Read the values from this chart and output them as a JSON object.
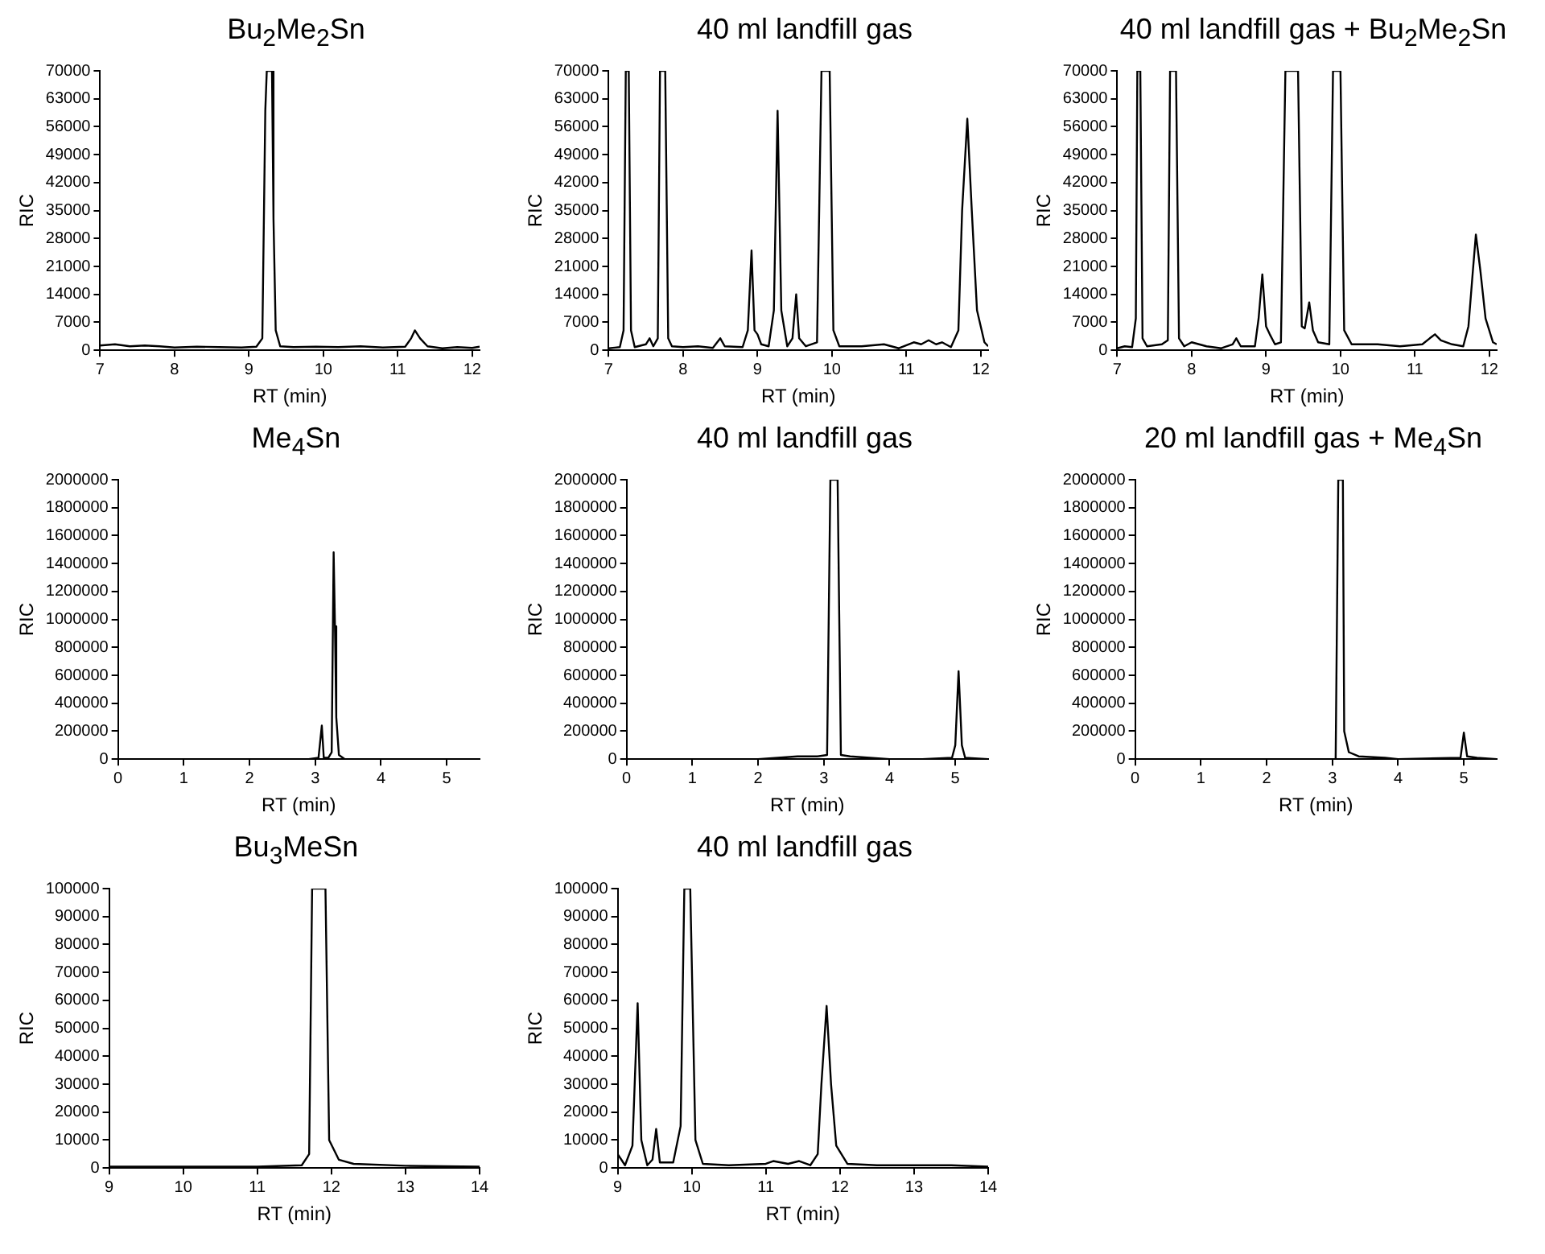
{
  "chart_data": [
    {
      "type": "line",
      "title": "Bu$_{2}$Me$_{2}$Sn",
      "xlabel": "RT (min)",
      "ylabel": "RIC",
      "color": "#000000",
      "marker": "none",
      "line_style": "solid",
      "grid": false,
      "xlim": [
        7,
        12.1
      ],
      "xticks": [
        7,
        8,
        9,
        10,
        11,
        12
      ],
      "ylim": [
        0,
        70000
      ],
      "yticks": [
        0,
        7000,
        14000,
        21000,
        28000,
        35000,
        42000,
        49000,
        56000,
        63000,
        70000
      ],
      "x": [
        7,
        7.2,
        7.4,
        7.6,
        7.8,
        8.0,
        8.3,
        8.6,
        8.9,
        9.1,
        9.18,
        9.22,
        9.24,
        9.31,
        9.33,
        9.36,
        9.42,
        9.6,
        9.9,
        10.2,
        10.5,
        10.8,
        11.1,
        11.18,
        11.23,
        11.3,
        11.4,
        11.6,
        11.8,
        12.0,
        12.1
      ],
      "values": [
        1200,
        1500,
        1000,
        1200,
        1000,
        700,
        900,
        800,
        700,
        900,
        3000,
        60000,
        70000,
        70000,
        33000,
        5000,
        1000,
        800,
        900,
        800,
        1000,
        700,
        900,
        3000,
        5000,
        3000,
        1000,
        500,
        800,
        600,
        900
      ]
    },
    {
      "type": "line",
      "title": "40 ml landfill gas",
      "xlabel": "RT (min)",
      "ylabel": "RIC",
      "color": "#000000",
      "marker": "none",
      "line_style": "solid",
      "grid": false,
      "xlim": [
        7,
        12.1
      ],
      "xticks": [
        7,
        8,
        9,
        10,
        11,
        12
      ],
      "ylim": [
        0,
        70000
      ],
      "yticks": [
        0,
        7000,
        14000,
        21000,
        28000,
        35000,
        42000,
        49000,
        56000,
        63000,
        70000
      ],
      "x": [
        7,
        7.15,
        7.2,
        7.23,
        7.27,
        7.3,
        7.35,
        7.5,
        7.55,
        7.6,
        7.66,
        7.69,
        7.76,
        7.8,
        7.85,
        8.0,
        8.2,
        8.4,
        8.5,
        8.56,
        8.8,
        8.87,
        8.92,
        8.96,
        9.0,
        9.05,
        9.15,
        9.22,
        9.27,
        9.32,
        9.4,
        9.47,
        9.52,
        9.56,
        9.65,
        9.8,
        9.86,
        9.97,
        10.02,
        10.1,
        10.4,
        10.7,
        10.9,
        11.1,
        11.2,
        11.3,
        11.4,
        11.48,
        11.6,
        11.7,
        11.75,
        11.82,
        11.88,
        11.95,
        12.05,
        12.1
      ],
      "values": [
        500,
        800,
        5000,
        70000,
        70000,
        5000,
        800,
        1500,
        3000,
        1000,
        3000,
        70000,
        70000,
        3000,
        1000,
        800,
        1000,
        600,
        3000,
        1000,
        800,
        5000,
        25000,
        5000,
        4000,
        1500,
        1000,
        10000,
        60000,
        10000,
        1000,
        3000,
        14000,
        3000,
        1000,
        2000,
        70000,
        70000,
        5000,
        1000,
        1000,
        1500,
        500,
        2000,
        1500,
        2500,
        1500,
        2000,
        800,
        5000,
        35000,
        58000,
        35000,
        10000,
        2000,
        1000
      ]
    },
    {
      "type": "line",
      "title": "40 ml landfill gas + Bu$_{2}$Me$_{2}$Sn",
      "xlabel": "RT (min)",
      "ylabel": "RIC",
      "color": "#000000",
      "marker": "none",
      "line_style": "solid",
      "grid": false,
      "xlim": [
        7,
        12.1
      ],
      "xticks": [
        7,
        8,
        9,
        10,
        11,
        12
      ],
      "ylim": [
        0,
        70000
      ],
      "yticks": [
        0,
        7000,
        14000,
        21000,
        28000,
        35000,
        42000,
        49000,
        56000,
        63000,
        70000
      ],
      "x": [
        7,
        7.1,
        7.2,
        7.25,
        7.27,
        7.31,
        7.34,
        7.4,
        7.6,
        7.68,
        7.71,
        7.79,
        7.83,
        7.9,
        8.0,
        8.2,
        8.4,
        8.55,
        8.6,
        8.66,
        8.85,
        8.9,
        8.95,
        9.0,
        9.05,
        9.12,
        9.2,
        9.26,
        9.43,
        9.48,
        9.52,
        9.58,
        9.63,
        9.7,
        9.85,
        9.9,
        10.0,
        10.05,
        10.15,
        10.5,
        10.8,
        11.1,
        11.2,
        11.27,
        11.35,
        11.5,
        11.65,
        11.72,
        11.78,
        11.82,
        11.88,
        11.95,
        12.05,
        12.1
      ],
      "values": [
        500,
        1000,
        800,
        8000,
        70000,
        70000,
        3000,
        1000,
        1500,
        2500,
        70000,
        70000,
        3000,
        1000,
        2000,
        1000,
        500,
        1500,
        3000,
        1000,
        1000,
        8000,
        19000,
        6000,
        4000,
        1500,
        2000,
        70000,
        70000,
        6000,
        5500,
        12000,
        5000,
        2000,
        1500,
        70000,
        70000,
        5000,
        1500,
        1500,
        1000,
        1500,
        3000,
        4000,
        2500,
        1500,
        1000,
        6000,
        20000,
        29000,
        20000,
        8000,
        2000,
        1500
      ]
    },
    {
      "type": "line",
      "title": "Me$_{4}$Sn",
      "xlabel": "RT (min)",
      "ylabel": "RIC",
      "color": "#000000",
      "marker": "none",
      "line_style": "solid",
      "grid": false,
      "xlim": [
        0,
        5.5
      ],
      "xticks": [
        0,
        1,
        2,
        3,
        4,
        5
      ],
      "ylim": [
        0,
        2000000
      ],
      "yticks": [
        0,
        200000,
        400000,
        600000,
        800000,
        1000000,
        1200000,
        1400000,
        1600000,
        1800000,
        2000000
      ],
      "x": [
        0,
        1,
        2,
        2.9,
        3.05,
        3.1,
        3.13,
        3.2,
        3.25,
        3.28,
        3.3,
        3.32,
        3.36,
        3.45,
        4,
        5.5
      ],
      "values": [
        0,
        0,
        0,
        0,
        10000,
        240000,
        10000,
        10000,
        50000,
        1480000,
        950000,
        300000,
        30000,
        0,
        0,
        0
      ]
    },
    {
      "type": "line",
      "title": "40 ml landfill gas",
      "xlabel": "RT (min)",
      "ylabel": "RIC",
      "color": "#000000",
      "marker": "none",
      "line_style": "solid",
      "grid": false,
      "xlim": [
        0,
        5.5
      ],
      "xticks": [
        0,
        1,
        2,
        3,
        4,
        5
      ],
      "ylim": [
        0,
        2000000
      ],
      "yticks": [
        0,
        200000,
        400000,
        600000,
        800000,
        1000000,
        1200000,
        1400000,
        1600000,
        1800000,
        2000000
      ],
      "x": [
        0,
        1,
        2,
        2.3,
        2.6,
        2.9,
        3.05,
        3.1,
        3.21,
        3.26,
        3.4,
        3.7,
        4,
        4.5,
        4.95,
        5.0,
        5.05,
        5.1,
        5.15,
        5.5
      ],
      "values": [
        0,
        0,
        0,
        10000,
        20000,
        20000,
        30000,
        2000000,
        2000000,
        30000,
        20000,
        10000,
        0,
        0,
        10000,
        100000,
        630000,
        100000,
        10000,
        0
      ]
    },
    {
      "type": "line",
      "title": "20 ml landfill gas + Me$_{4}$Sn",
      "xlabel": "RT (min)",
      "ylabel": "RIC",
      "color": "#000000",
      "marker": "none",
      "line_style": "solid",
      "grid": false,
      "xlim": [
        0,
        5.5
      ],
      "xticks": [
        0,
        1,
        2,
        3,
        4,
        5
      ],
      "ylim": [
        0,
        2000000
      ],
      "yticks": [
        0,
        200000,
        400000,
        600000,
        800000,
        1000000,
        1200000,
        1400000,
        1600000,
        1800000,
        2000000
      ],
      "x": [
        0,
        1,
        2,
        3.05,
        3.09,
        3.16,
        3.18,
        3.25,
        3.4,
        3.8,
        4.0,
        4.95,
        5.0,
        5.05,
        5.2,
        5.5
      ],
      "values": [
        0,
        0,
        0,
        0,
        2000000,
        2000000,
        200000,
        50000,
        20000,
        10000,
        0,
        10000,
        190000,
        20000,
        10000,
        0
      ]
    },
    {
      "type": "line",
      "title": "Bu$_{3}$MeSn",
      "xlabel": "RT (min)",
      "ylabel": "RIC",
      "color": "#000000",
      "marker": "none",
      "line_style": "solid",
      "grid": false,
      "xlim": [
        9,
        14
      ],
      "xticks": [
        9,
        10,
        11,
        12,
        13,
        14
      ],
      "ylim": [
        0,
        100000
      ],
      "yticks": [
        0,
        10000,
        20000,
        30000,
        40000,
        50000,
        60000,
        70000,
        80000,
        90000,
        100000
      ],
      "x": [
        9,
        10,
        11,
        11.6,
        11.7,
        11.74,
        11.92,
        11.97,
        12.1,
        12.3,
        13,
        14
      ],
      "values": [
        500,
        500,
        500,
        1000,
        5000,
        100000,
        100000,
        10000,
        3000,
        1500,
        800,
        500
      ]
    },
    {
      "type": "line",
      "title": "40 ml landfill gas",
      "xlabel": "RT (min)",
      "ylabel": "RIC",
      "color": "#000000",
      "marker": "none",
      "line_style": "solid",
      "grid": false,
      "xlim": [
        9,
        14
      ],
      "xticks": [
        9,
        10,
        11,
        12,
        13,
        14
      ],
      "ylim": [
        0,
        100000
      ],
      "yticks": [
        0,
        10000,
        20000,
        30000,
        40000,
        50000,
        60000,
        70000,
        80000,
        90000,
        100000
      ],
      "x": [
        9,
        9.05,
        9.1,
        9.2,
        9.27,
        9.32,
        9.4,
        9.47,
        9.52,
        9.57,
        9.75,
        9.85,
        9.9,
        9.98,
        10.05,
        10.15,
        10.5,
        11,
        11.1,
        11.3,
        11.45,
        11.6,
        11.7,
        11.75,
        11.82,
        11.88,
        11.95,
        12.1,
        12.5,
        13,
        13.5,
        14
      ],
      "values": [
        5000,
        3000,
        1000,
        8000,
        59000,
        10000,
        1000,
        3000,
        14000,
        2000,
        2000,
        15000,
        100000,
        100000,
        10000,
        1500,
        1000,
        1500,
        2500,
        1500,
        2500,
        1000,
        5000,
        30000,
        58000,
        30000,
        8000,
        1500,
        1000,
        1000,
        1000,
        500
      ]
    }
  ]
}
